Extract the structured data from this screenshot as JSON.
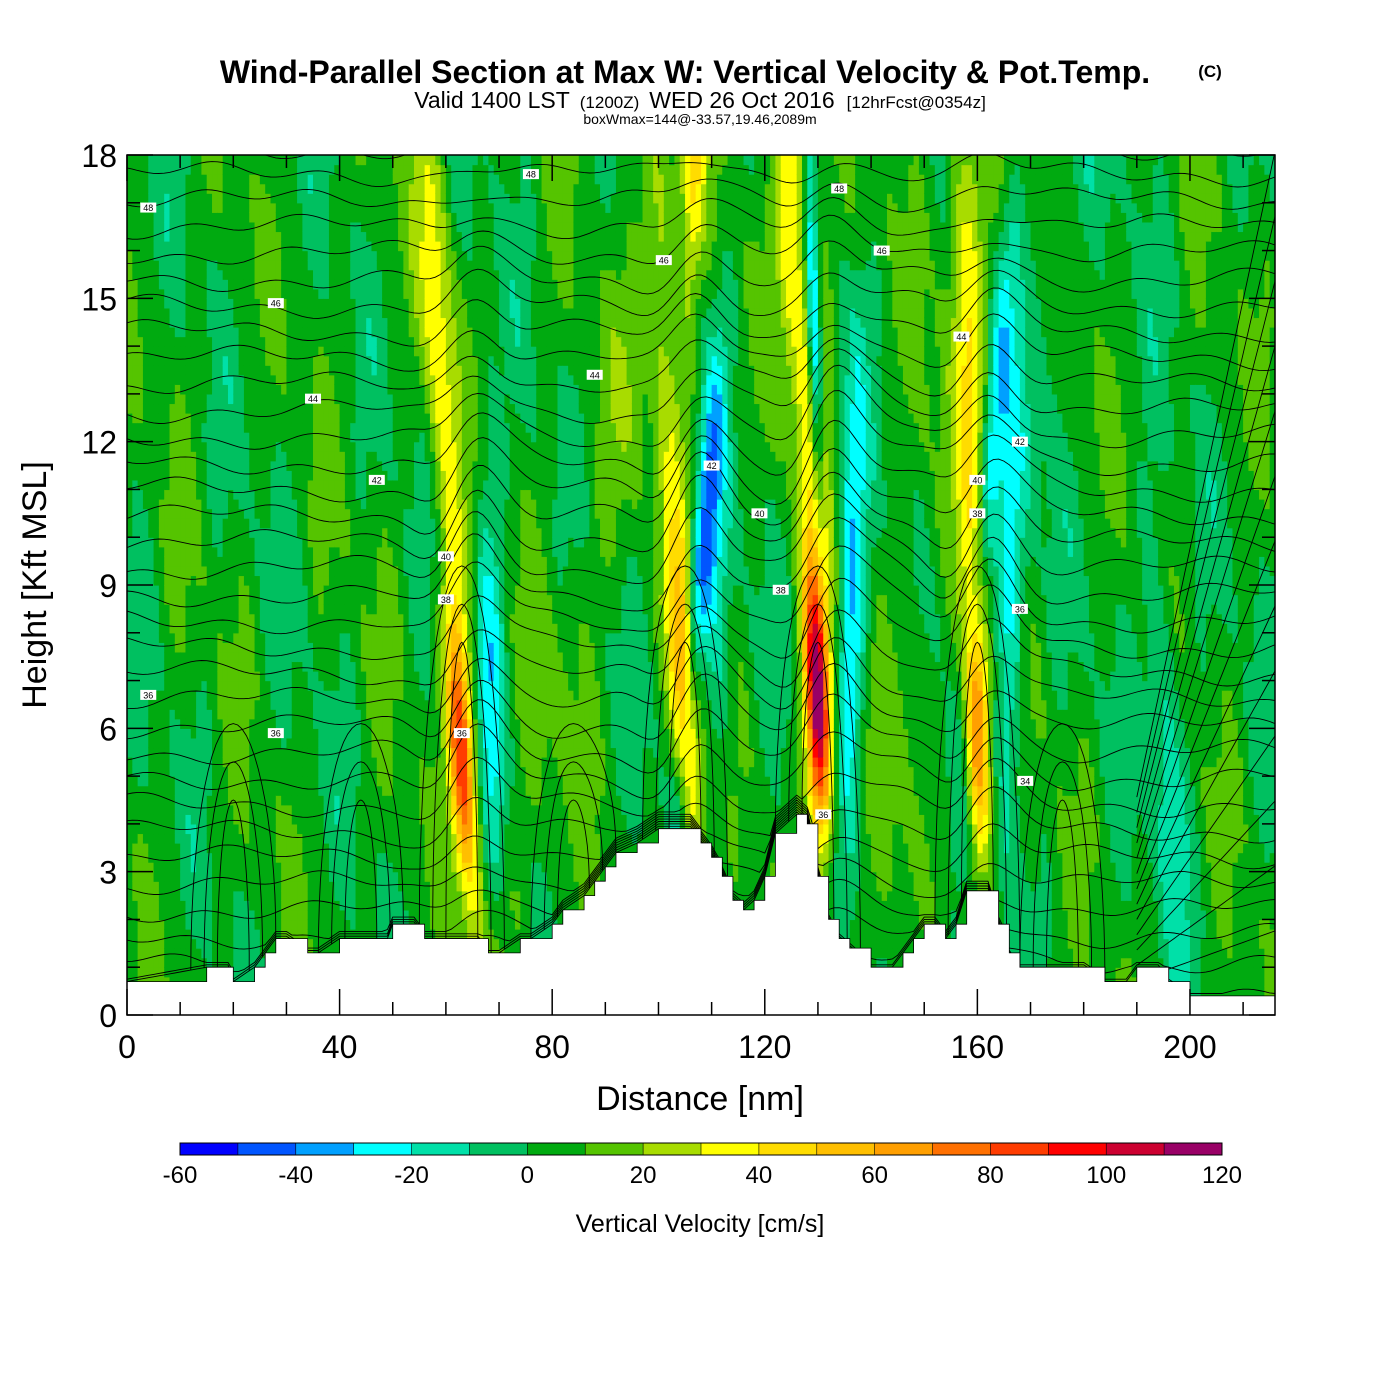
{
  "title": {
    "main": "Wind-Parallel Section at Max W: Vertical Velocity & Pot.Temp.",
    "copyright": "(C)",
    "valid_prefix": "Valid 1400 LST",
    "valid_utc": "(1200Z)",
    "valid_date": "WED 26 Oct 2016",
    "forecast": "[12hrFcst@0354z]",
    "box_info": "boxWmax=144@-33.57,19.46,2089m"
  },
  "chart_data": {
    "type": "heatmap",
    "xlabel": "Distance [nm]",
    "ylabel": "Height [Kft MSL]",
    "xlim": [
      0,
      216
    ],
    "ylim": [
      0,
      18
    ],
    "x_ticks": [
      0,
      40,
      80,
      120,
      160,
      200
    ],
    "x_tick_labels": [
      "0",
      "40",
      "80",
      "120",
      "160",
      "200"
    ],
    "y_ticks": [
      0,
      3,
      6,
      9,
      12,
      15,
      18
    ],
    "y_tick_labels": [
      "0",
      "3",
      "6",
      "9",
      "12",
      "15",
      "18"
    ],
    "colorbar": {
      "label": "Vertical Velocity [cm/s]",
      "levels": [
        -60,
        -50,
        -40,
        -30,
        -20,
        -10,
        0,
        10,
        20,
        30,
        40,
        50,
        60,
        70,
        80,
        90,
        100,
        110,
        120
      ],
      "tick_values": [
        -60,
        -40,
        -20,
        0,
        20,
        40,
        60,
        80,
        100,
        120
      ],
      "tick_labels": [
        "-60",
        "-40",
        "-20",
        "0",
        "20",
        "40",
        "60",
        "80",
        "100",
        "120"
      ],
      "colors": [
        "#0000ff",
        "#0055ff",
        "#00a0ff",
        "#00ffff",
        "#00e0a8",
        "#00c060",
        "#00aa10",
        "#55c400",
        "#a8dc00",
        "#ffff00",
        "#ffdc00",
        "#ffbf00",
        "#ff9f00",
        "#ff7000",
        "#ff3c00",
        "#ff0000",
        "#cc0030",
        "#990066"
      ]
    },
    "terrain": {
      "distance_nm": [
        0,
        15,
        19,
        20,
        24,
        26,
        28,
        30,
        34,
        36,
        40,
        46,
        49,
        50,
        54,
        56,
        60,
        66,
        68,
        70,
        74,
        76,
        80,
        82,
        86,
        88,
        90,
        92,
        96,
        100,
        104,
        106,
        108,
        110,
        112,
        114,
        116,
        118,
        120,
        122,
        126,
        128,
        130,
        132,
        134,
        136,
        140,
        144,
        146,
        148,
        150,
        152,
        154,
        156,
        158,
        162,
        164,
        166,
        168,
        180,
        184,
        188,
        190,
        194,
        196,
        200,
        204,
        210,
        216
      ],
      "height_kft": [
        0.7,
        1.0,
        1.0,
        0.7,
        1.0,
        1.3,
        1.6,
        1.6,
        1.3,
        1.3,
        1.6,
        1.6,
        1.6,
        1.9,
        1.9,
        1.6,
        1.6,
        1.6,
        1.3,
        1.3,
        1.6,
        1.6,
        1.9,
        2.2,
        2.5,
        2.8,
        3.1,
        3.4,
        3.6,
        3.9,
        3.9,
        3.9,
        3.6,
        3.3,
        2.9,
        2.4,
        2.2,
        2.4,
        2.9,
        3.8,
        4.2,
        4.0,
        2.9,
        2.0,
        1.6,
        1.4,
        1.0,
        1.0,
        1.3,
        1.6,
        1.9,
        1.9,
        1.6,
        1.9,
        2.6,
        2.6,
        1.9,
        1.3,
        1.0,
        1.0,
        0.7,
        0.7,
        1.0,
        1.0,
        0.7,
        0.4,
        0.4,
        0.4,
        0.4
      ]
    },
    "updraft_cores": [
      {
        "x_nm": 63,
        "z_kft": 5.5,
        "w_cms": 80
      },
      {
        "x_nm": 105,
        "z_kft": 6.5,
        "w_cms": 60
      },
      {
        "x_nm": 130,
        "z_kft": 6.5,
        "w_cms": 110
      },
      {
        "x_nm": 160,
        "z_kft": 6.0,
        "w_cms": 80
      }
    ],
    "contour_labels": [
      {
        "x_nm": 4,
        "z_kft": 16.9,
        "text": "48"
      },
      {
        "x_nm": 76,
        "z_kft": 17.6,
        "text": "48"
      },
      {
        "x_nm": 134,
        "z_kft": 17.3,
        "text": "48"
      },
      {
        "x_nm": 101,
        "z_kft": 15.8,
        "text": "46"
      },
      {
        "x_nm": 142,
        "z_kft": 16.0,
        "text": "46"
      },
      {
        "x_nm": 28,
        "z_kft": 14.9,
        "text": "46"
      },
      {
        "x_nm": 35,
        "z_kft": 12.9,
        "text": "44"
      },
      {
        "x_nm": 88,
        "z_kft": 13.4,
        "text": "44"
      },
      {
        "x_nm": 157,
        "z_kft": 14.2,
        "text": "44"
      },
      {
        "x_nm": 47,
        "z_kft": 11.2,
        "text": "42"
      },
      {
        "x_nm": 110,
        "z_kft": 11.5,
        "text": "42"
      },
      {
        "x_nm": 168,
        "z_kft": 12.0,
        "text": "42"
      },
      {
        "x_nm": 60,
        "z_kft": 9.6,
        "text": "40"
      },
      {
        "x_nm": 119,
        "z_kft": 10.5,
        "text": "40"
      },
      {
        "x_nm": 160,
        "z_kft": 11.2,
        "text": "40"
      },
      {
        "x_nm": 60,
        "z_kft": 8.7,
        "text": "38"
      },
      {
        "x_nm": 123,
        "z_kft": 8.9,
        "text": "38"
      },
      {
        "x_nm": 160,
        "z_kft": 10.5,
        "text": "38"
      },
      {
        "x_nm": 4,
        "z_kft": 6.7,
        "text": "36"
      },
      {
        "x_nm": 28,
        "z_kft": 5.9,
        "text": "36"
      },
      {
        "x_nm": 63,
        "z_kft": 5.9,
        "text": "36"
      },
      {
        "x_nm": 168,
        "z_kft": 8.5,
        "text": "36"
      },
      {
        "x_nm": 131,
        "z_kft": 4.2,
        "text": "36"
      },
      {
        "x_nm": 169,
        "z_kft": 4.9,
        "text": "34"
      }
    ]
  }
}
